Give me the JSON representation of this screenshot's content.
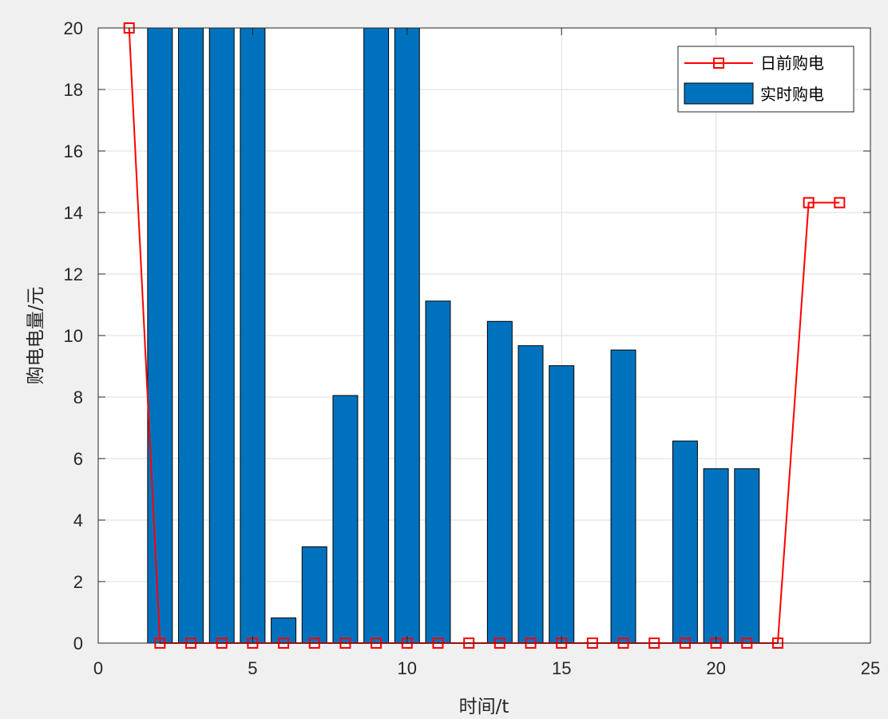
{
  "chart_data": {
    "type": "bar",
    "xlabel": "时间/t",
    "ylabel": "购电电量/元",
    "xlim": [
      0,
      25
    ],
    "ylim": [
      0,
      20
    ],
    "x_ticks": [
      0,
      5,
      10,
      15,
      20,
      25
    ],
    "y_ticks": [
      0,
      2,
      4,
      6,
      8,
      10,
      12,
      14,
      16,
      18,
      20
    ],
    "grid": true,
    "legend_position": "top-right",
    "x": [
      1,
      2,
      3,
      4,
      5,
      6,
      7,
      8,
      9,
      10,
      11,
      12,
      13,
      14,
      15,
      16,
      17,
      18,
      19,
      20,
      21,
      22,
      23,
      24
    ],
    "series": [
      {
        "name": "日前购电",
        "kind": "line",
        "marker": "square",
        "color": "#ff0000",
        "values": [
          20,
          0,
          0,
          0,
          0,
          0,
          0,
          0,
          0,
          0,
          0,
          0,
          0,
          0,
          0,
          0,
          0,
          0,
          0,
          0,
          0,
          0,
          14.32,
          14.32
        ]
      },
      {
        "name": "实时购电",
        "kind": "bar",
        "color": "#0072bd",
        "values": [
          0,
          20,
          20,
          20,
          20,
          0.82,
          3.13,
          8.05,
          20,
          20,
          11.12,
          0,
          10.46,
          9.67,
          9.02,
          0,
          9.53,
          0,
          6.57,
          5.67,
          5.67,
          0,
          0,
          0
        ]
      }
    ]
  }
}
